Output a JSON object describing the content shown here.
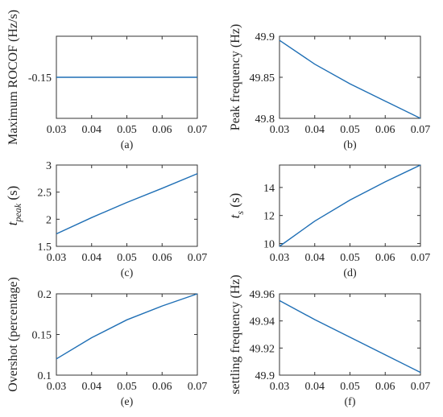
{
  "colors": {
    "line": "#1f6fb5",
    "axis": "#333333",
    "text": "#222222"
  },
  "chart_data": [
    {
      "type": "line",
      "caption": "(a)",
      "ylabel": "Maximum ROCOF (Hz/s)",
      "xlim": [
        0.03,
        0.07
      ],
      "ylim": [
        -0.2,
        -0.1
      ],
      "xticks": [
        0.03,
        0.04,
        0.05,
        0.06,
        0.07
      ],
      "xtick_labels": [
        "0.03",
        "0.04",
        "0.05",
        "0.06",
        "0.07"
      ],
      "yticks": [
        -0.15
      ],
      "ytick_labels": [
        "-0.15"
      ],
      "x": [
        0.03,
        0.04,
        0.05,
        0.06,
        0.07
      ],
      "y": [
        -0.15,
        -0.15,
        -0.15,
        -0.15,
        -0.15
      ],
      "grid": false
    },
    {
      "type": "line",
      "caption": "(b)",
      "ylabel": "Peak frequency (Hz)",
      "xlim": [
        0.03,
        0.07
      ],
      "ylim": [
        49.8,
        49.9
      ],
      "xticks": [
        0.03,
        0.04,
        0.05,
        0.06,
        0.07
      ],
      "xtick_labels": [
        "0.03",
        "0.04",
        "0.05",
        "0.06",
        "0.07"
      ],
      "yticks": [
        49.8,
        49.85,
        49.9
      ],
      "ytick_labels": [
        "49.8",
        "49.85",
        "49.9"
      ],
      "x": [
        0.03,
        0.04,
        0.05,
        0.06,
        0.07
      ],
      "y": [
        49.895,
        49.866,
        49.842,
        49.821,
        49.8
      ],
      "grid": false
    },
    {
      "type": "line",
      "caption": "(c)",
      "ylabel_main": "t",
      "ylabel_sub": "peak",
      "ylabel_unit": " (s)",
      "xlim": [
        0.03,
        0.07
      ],
      "ylim": [
        1.5,
        3
      ],
      "xticks": [
        0.03,
        0.04,
        0.05,
        0.06,
        0.07
      ],
      "xtick_labels": [
        "0.03",
        "0.04",
        "0.05",
        "0.06",
        "0.07"
      ],
      "yticks": [
        1.5,
        2,
        2.5,
        3
      ],
      "ytick_labels": [
        "1.5",
        "2",
        "2.5",
        "3"
      ],
      "x": [
        0.03,
        0.04,
        0.05,
        0.06,
        0.07
      ],
      "y": [
        1.73,
        2.03,
        2.31,
        2.57,
        2.84
      ],
      "grid": false
    },
    {
      "type": "line",
      "caption": "(d)",
      "ylabel_main": "t",
      "ylabel_sub": "s",
      "ylabel_unit": " (s)",
      "xlim": [
        0.03,
        0.07
      ],
      "ylim": [
        9.8,
        15.6
      ],
      "xticks": [
        0.03,
        0.04,
        0.05,
        0.06,
        0.07
      ],
      "xtick_labels": [
        "0.03",
        "0.04",
        "0.05",
        "0.06",
        "0.07"
      ],
      "yticks": [
        10,
        12,
        14
      ],
      "ytick_labels": [
        "10",
        "12",
        "14"
      ],
      "x": [
        0.03,
        0.04,
        0.05,
        0.06,
        0.07
      ],
      "y": [
        9.8,
        11.6,
        13.1,
        14.4,
        15.6
      ],
      "grid": false
    },
    {
      "type": "line",
      "caption": "(e)",
      "ylabel": "Overshot (percentage)",
      "xlim": [
        0.03,
        0.07
      ],
      "ylim": [
        0.1,
        0.2
      ],
      "xticks": [
        0.03,
        0.04,
        0.05,
        0.06,
        0.07
      ],
      "xtick_labels": [
        "0.03",
        "0.04",
        "0.05",
        "0.06",
        "0.07"
      ],
      "yticks": [
        0.1,
        0.15,
        0.2
      ],
      "ytick_labels": [
        "0.1",
        "0.15",
        "0.2"
      ],
      "x": [
        0.03,
        0.04,
        0.05,
        0.06,
        0.07
      ],
      "y": [
        0.12,
        0.146,
        0.168,
        0.185,
        0.2
      ],
      "grid": false
    },
    {
      "type": "line",
      "caption": "(f)",
      "ylabel": "settling frequency (Hz)",
      "xlim": [
        0.03,
        0.07
      ],
      "ylim": [
        49.9,
        49.96
      ],
      "xticks": [
        0.03,
        0.04,
        0.05,
        0.06,
        0.07
      ],
      "xtick_labels": [
        "0.03",
        "0.04",
        "0.05",
        "0.06",
        "0.07"
      ],
      "yticks": [
        49.9,
        49.92,
        49.94,
        49.96
      ],
      "ytick_labels": [
        "49.9",
        "49.92",
        "49.94",
        "49.96"
      ],
      "x": [
        0.03,
        0.04,
        0.05,
        0.06,
        0.07
      ],
      "y": [
        49.955,
        49.941,
        49.928,
        49.915,
        49.902
      ],
      "grid": false
    }
  ]
}
